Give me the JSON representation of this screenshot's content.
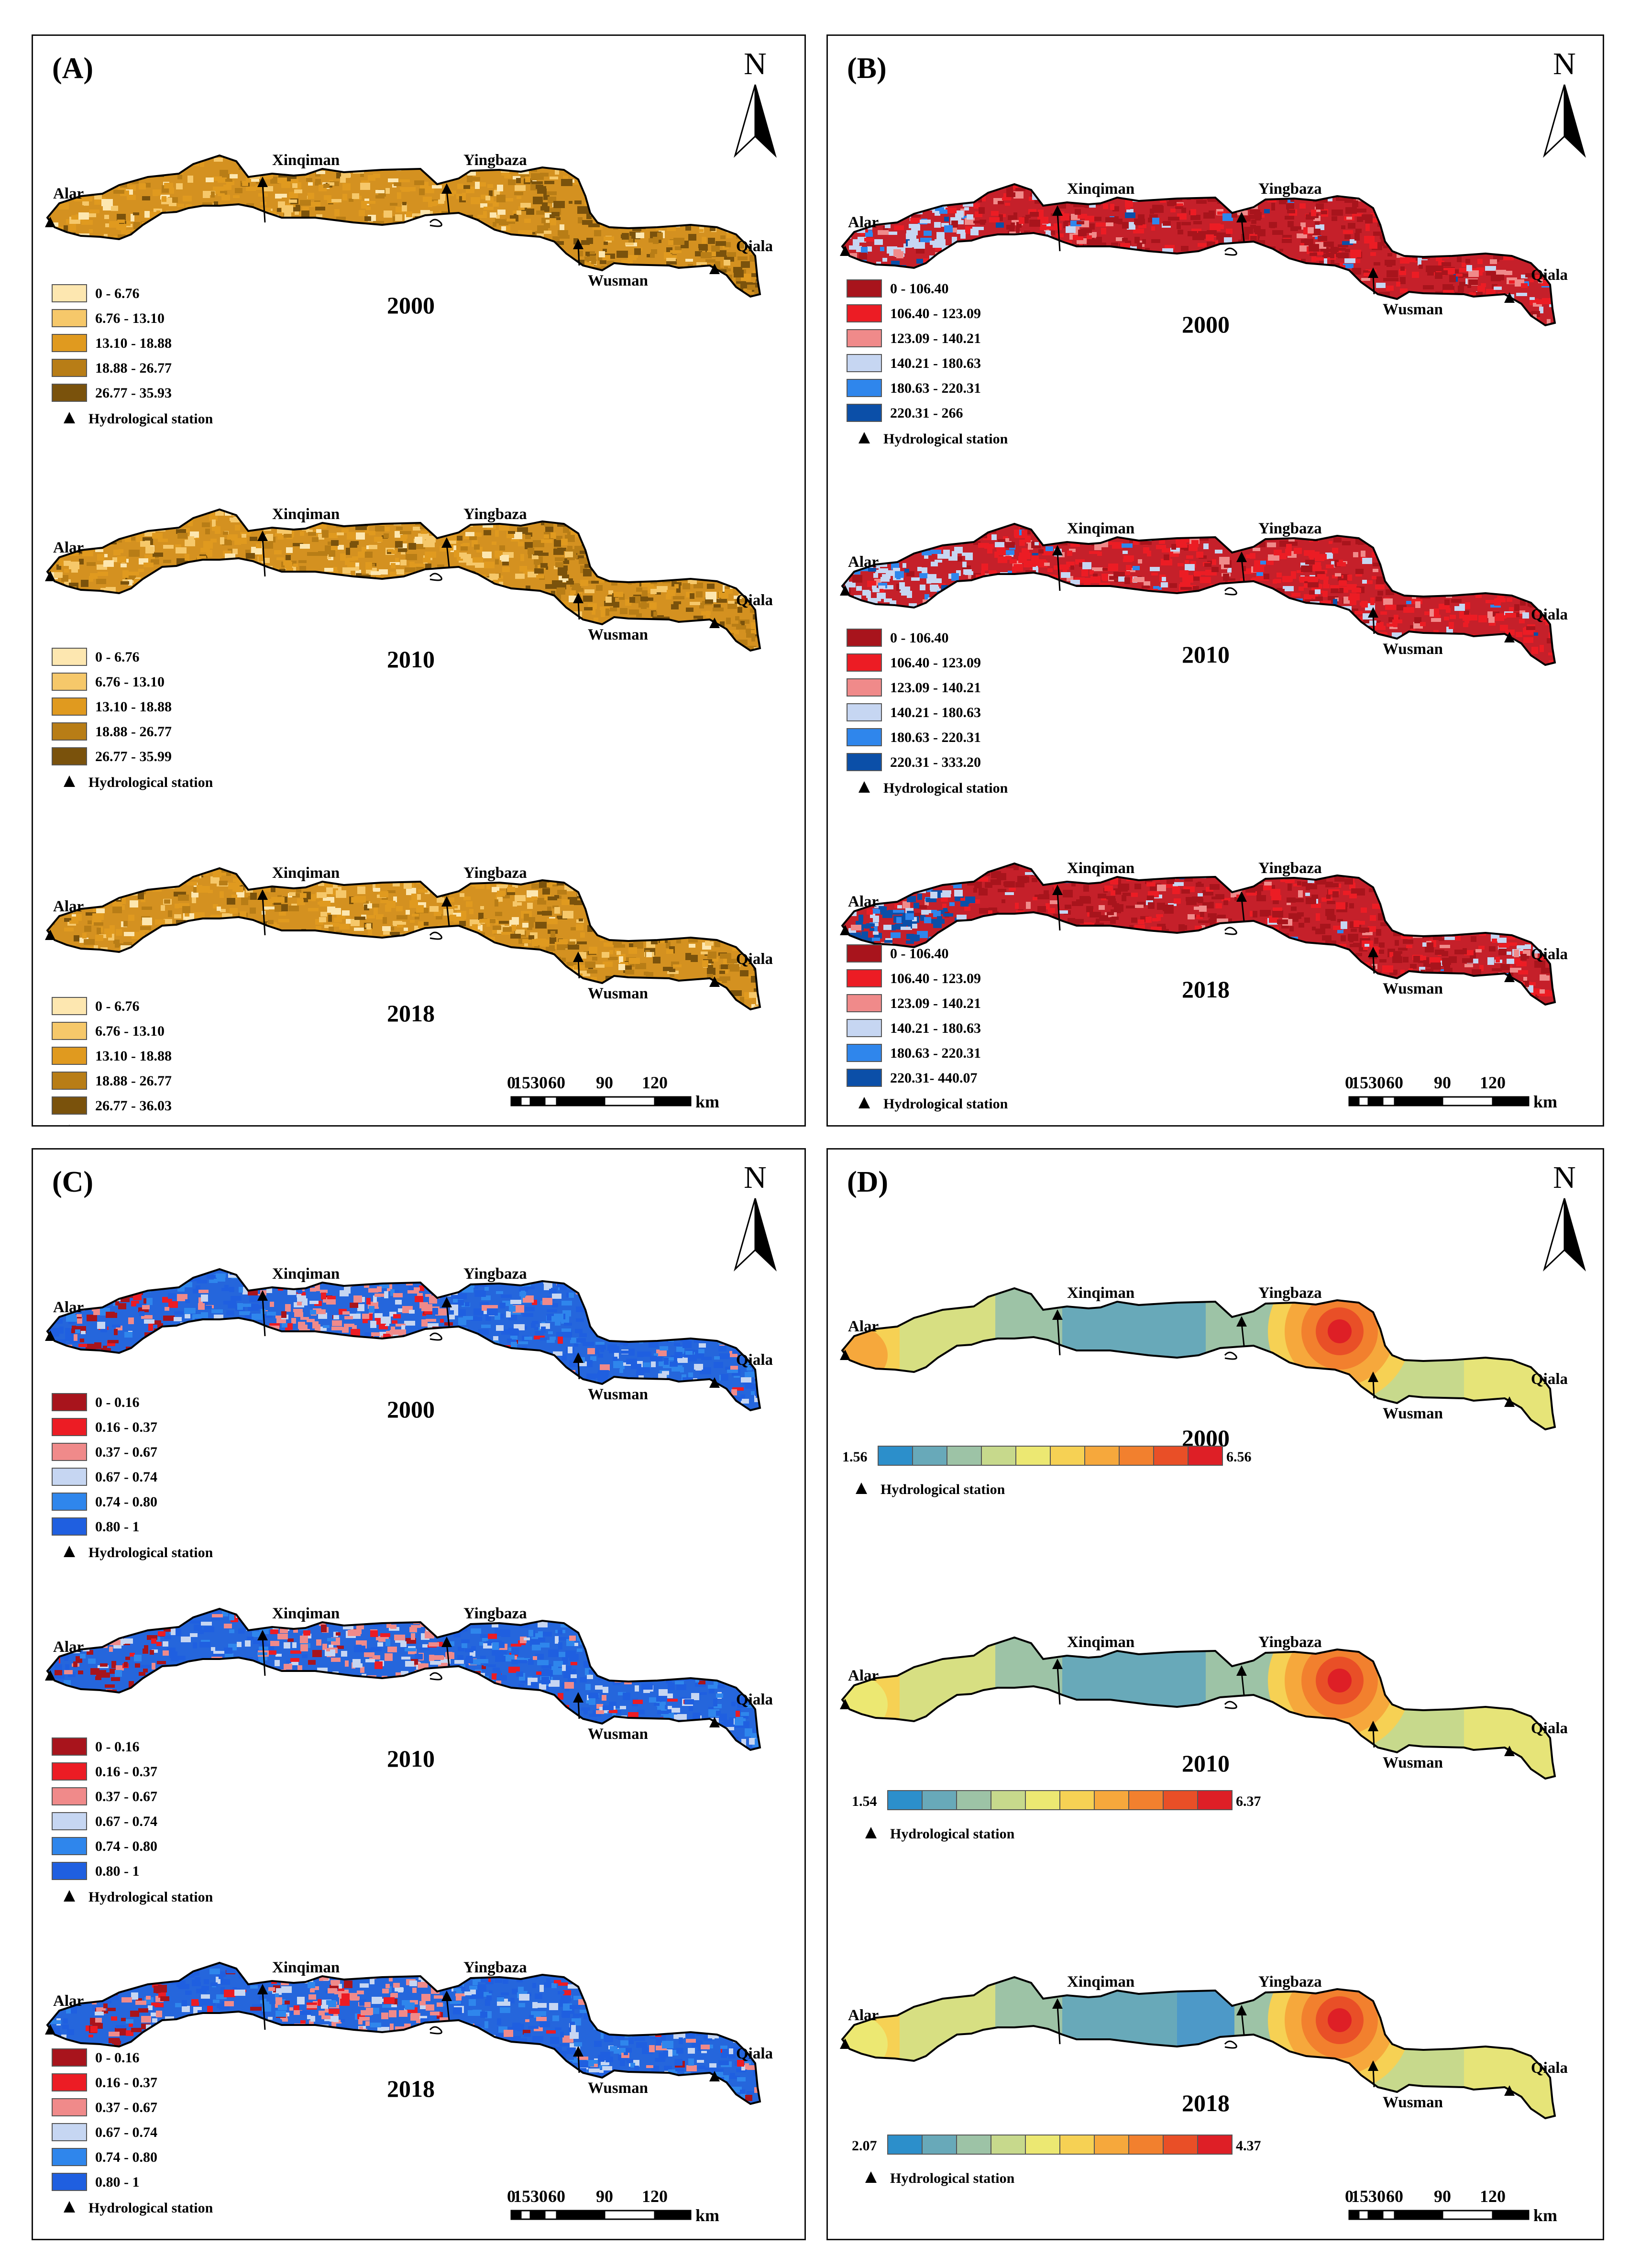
{
  "stations": {
    "alar": "Alar",
    "xinqiman": "Xinqiman",
    "yingbaza": "Yingbaza",
    "wusman": "Wusman",
    "qiala": "Qiala"
  },
  "north_label": "N",
  "scale_bar": {
    "ticks": [
      "0",
      "1530",
      "60",
      "90",
      "120"
    ],
    "unit": "km"
  },
  "station_legend_label": "Hydrological station",
  "panels": [
    {
      "label": "(A)",
      "maps": [
        {
          "year": "2000",
          "legend": [
            "0 - 6.76",
            "6.76 - 13.10",
            "13.10 - 18.88",
            "18.88 - 26.77",
            "26.77 - 35.93"
          ]
        },
        {
          "year": "2010",
          "legend": [
            "0 - 6.76",
            "6.76 - 13.10",
            "13.10 - 18.88",
            "18.88 - 26.77",
            "26.77 - 35.99"
          ]
        },
        {
          "year": "2018",
          "legend": [
            "0 - 6.76",
            "6.76 - 13.10",
            "13.10 - 18.88",
            "18.88 - 26.77",
            "26.77 - 36.03"
          ]
        }
      ],
      "legend_colors": [
        "#fde7b0",
        "#f6c86a",
        "#e09a1f",
        "#b87d16",
        "#7a520c"
      ]
    },
    {
      "label": "(B)",
      "maps": [
        {
          "year": "2000",
          "legend": [
            "0 - 106.40",
            "106.40 - 123.09",
            "123.09 - 140.21",
            "140.21 - 180.63",
            "180.63 - 220.31",
            "220.31 - 266"
          ]
        },
        {
          "year": "2010",
          "legend": [
            "0 - 106.40",
            "106.40 - 123.09",
            "123.09 - 140.21",
            "140.21 - 180.63",
            "180.63 - 220.31",
            "220.31 - 333.20"
          ]
        },
        {
          "year": "2018",
          "legend": [
            "0 - 106.40",
            "106.40 - 123.09",
            "123.09 - 140.21",
            "140.21 - 180.63",
            "180.63 - 220.31",
            "220.31- 440.07"
          ]
        }
      ],
      "legend_colors": [
        "#a8141c",
        "#ec1c24",
        "#f08a8a",
        "#c6d6f2",
        "#2f86ec",
        "#0b4fa8"
      ]
    },
    {
      "label": "(C)",
      "maps": [
        {
          "year": "2000",
          "legend": [
            "0 - 0.16",
            "0.16 - 0.37",
            "0.37 - 0.67",
            "0.67 - 0.74",
            "0.74 - 0.80",
            "0.80 - 1"
          ]
        },
        {
          "year": "2010",
          "legend": [
            "0 - 0.16",
            "0.16 - 0.37",
            "0.37 - 0.67",
            "0.67 - 0.74",
            "0.74 - 0.80",
            "0.80 - 1"
          ]
        },
        {
          "year": "2018",
          "legend": [
            "0 - 0.16",
            "0.16 - 0.37",
            "0.37 - 0.67",
            "0.67 - 0.74",
            "0.74 - 0.80",
            "0.80 - 1"
          ]
        }
      ],
      "legend_colors": [
        "#a8141c",
        "#ec1c24",
        "#f08a8a",
        "#c6d6f2",
        "#2f86ec",
        "#1f5fe0"
      ]
    },
    {
      "label": "(D)",
      "maps": [
        {
          "year": "2000",
          "min": "1.56",
          "max": "6.56"
        },
        {
          "year": "2010",
          "min": "1.54",
          "max": "6.37"
        },
        {
          "year": "2018",
          "min": "2.07",
          "max": "4.37"
        }
      ],
      "ramp_colors": [
        "#2c8fcb",
        "#68a9b9",
        "#9dc3a6",
        "#c7d98c",
        "#ece872",
        "#f6d154",
        "#f6a83c",
        "#f2802e",
        "#e94f27",
        "#de1f26"
      ]
    }
  ]
}
